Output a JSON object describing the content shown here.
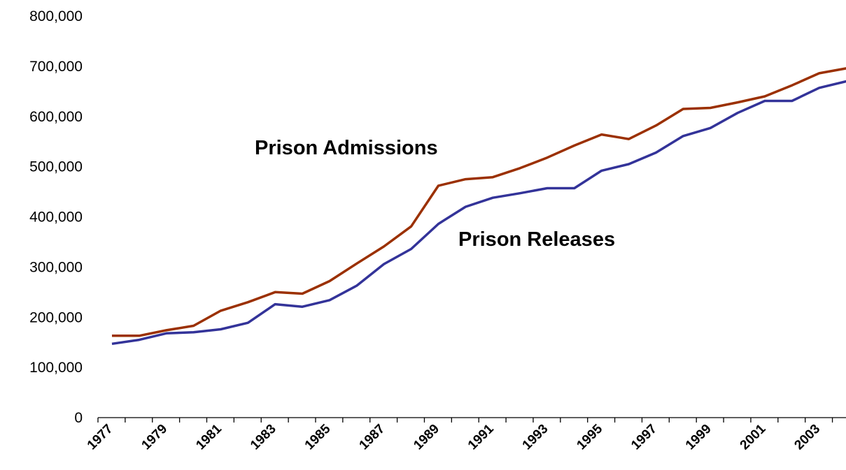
{
  "chart_data": {
    "type": "line",
    "title": "",
    "xlabel": "",
    "ylabel": "",
    "x": [
      1977,
      1978,
      1979,
      1980,
      1981,
      1982,
      1983,
      1984,
      1985,
      1986,
      1987,
      1988,
      1989,
      1990,
      1991,
      1992,
      1993,
      1994,
      1995,
      1996,
      1997,
      1998,
      1999,
      2000,
      2001,
      2002,
      2003,
      2004
    ],
    "x_tick_labels": [
      "1977",
      "1979",
      "1981",
      "1983",
      "1985",
      "1987",
      "1989",
      "1991",
      "1993",
      "1995",
      "1997",
      "1999",
      "2001",
      "2003"
    ],
    "y_tick_labels": [
      "0",
      "100,000",
      "200,000",
      "300,000",
      "400,000",
      "500,000",
      "600,000",
      "700,000",
      "800,000"
    ],
    "ylim": [
      0,
      800000
    ],
    "grid": false,
    "legend": "none",
    "series": [
      {
        "name": "Prison Admissions",
        "color": "#9b3000",
        "values": [
          163000,
          163000,
          174000,
          183000,
          213000,
          230000,
          250000,
          247000,
          272000,
          307000,
          341000,
          381000,
          462000,
          475000,
          479000,
          497000,
          518000,
          542000,
          564000,
          555000,
          582000,
          615000,
          617000,
          628000,
          640000,
          662000,
          686000,
          696000
        ]
      },
      {
        "name": "Prison Releases",
        "color": "#333399",
        "values": [
          147000,
          155000,
          168000,
          170000,
          176000,
          189000,
          226000,
          221000,
          234000,
          263000,
          306000,
          336000,
          386000,
          420000,
          438000,
          447000,
          457000,
          457000,
          492000,
          505000,
          528000,
          561000,
          577000,
          607000,
          631000,
          631000,
          657000,
          670000
        ]
      }
    ],
    "annotations": [
      {
        "text": "Prison Admissions",
        "series": 0
      },
      {
        "text": "Prison Releases",
        "series": 1
      }
    ]
  }
}
